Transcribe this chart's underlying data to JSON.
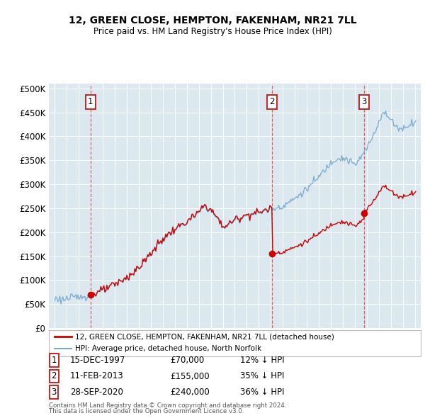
{
  "title": "12, GREEN CLOSE, HEMPTON, FAKENHAM, NR21 7LL",
  "subtitle": "Price paid vs. HM Land Registry's House Price Index (HPI)",
  "transactions": [
    {
      "num": 1,
      "date_str": "15-DEC-1997",
      "date_x": 1997.96,
      "price": 70000,
      "pct": "12% ↓ HPI"
    },
    {
      "num": 2,
      "date_str": "11-FEB-2013",
      "date_x": 2013.12,
      "price": 155000,
      "pct": "35% ↓ HPI"
    },
    {
      "num": 3,
      "date_str": "28-SEP-2020",
      "date_x": 2020.75,
      "price": 240000,
      "pct": "36% ↓ HPI"
    }
  ],
  "hpi_label": "HPI: Average price, detached house, North Norfolk",
  "property_label": "12, GREEN CLOSE, HEMPTON, FAKENHAM, NR21 7LL (detached house)",
  "footnote1": "Contains HM Land Registry data © Crown copyright and database right 2024.",
  "footnote2": "This data is licensed under the Open Government Licence v3.0.",
  "ylim": [
    0,
    510000
  ],
  "yticks": [
    0,
    50000,
    100000,
    150000,
    200000,
    250000,
    300000,
    350000,
    400000,
    450000,
    500000
  ],
  "xlim": [
    1994.5,
    2025.5
  ],
  "plot_bg": "#dce8f0",
  "red_color": "#cc0000",
  "blue_color": "#7aabcf",
  "dashed_red": "#dd4444",
  "transaction_box_color": "#cc2222",
  "hpi_anchors_x": [
    1995.0,
    1995.5,
    1996.0,
    1997.0,
    1998.0,
    1999.0,
    2000.0,
    2001.0,
    2002.0,
    2003.0,
    2004.0,
    2005.0,
    2006.0,
    2007.0,
    2007.5,
    2008.0,
    2008.5,
    2009.0,
    2009.5,
    2010.0,
    2011.0,
    2012.0,
    2013.0,
    2014.0,
    2015.0,
    2016.0,
    2017.0,
    2017.5,
    2018.0,
    2018.5,
    2019.0,
    2019.5,
    2020.0,
    2020.5,
    2021.0,
    2021.5,
    2022.0,
    2022.3,
    2022.6,
    2023.0,
    2023.5,
    2024.0,
    2024.5,
    2025.0
  ],
  "hpi_anchors_y": [
    62000,
    60000,
    61000,
    65000,
    70000,
    78000,
    90000,
    105000,
    125000,
    155000,
    185000,
    205000,
    220000,
    240000,
    255000,
    245000,
    230000,
    210000,
    215000,
    225000,
    235000,
    240000,
    248000,
    255000,
    270000,
    290000,
    315000,
    330000,
    345000,
    355000,
    355000,
    350000,
    340000,
    355000,
    375000,
    400000,
    430000,
    450000,
    445000,
    435000,
    420000,
    415000,
    425000,
    430000
  ],
  "noise_seed": 123,
  "noise_scale": 4000
}
